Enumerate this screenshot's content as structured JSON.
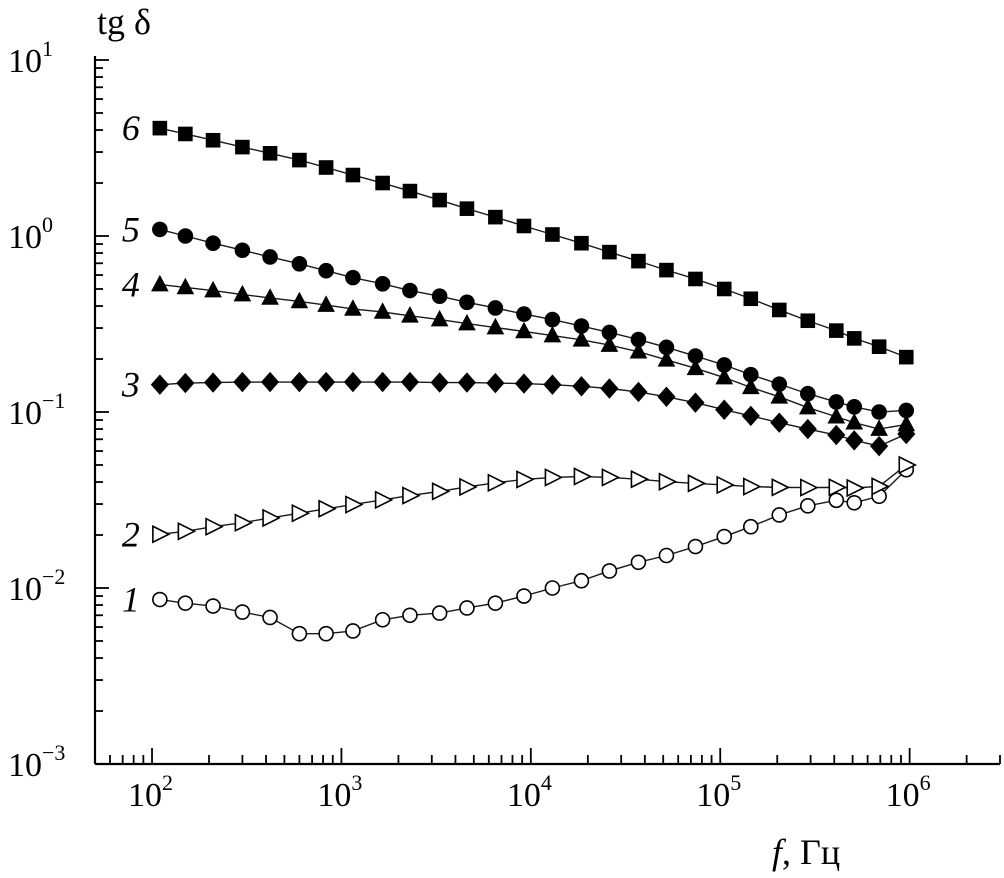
{
  "chart_data": {
    "type": "scatter",
    "title": "",
    "xlabel": {
      "var": "f",
      "unit": ", Гц"
    },
    "ylabel": "tg δ",
    "xscale": "log",
    "yscale": "log",
    "xlim": [
      50,
      3000000
    ],
    "ylim": [
      0.001,
      10
    ],
    "grid": false,
    "legend": "none",
    "x_ticks": [
      {
        "base": "10",
        "exp": "2",
        "value": 100
      },
      {
        "base": "10",
        "exp": "3",
        "value": 1000
      },
      {
        "base": "10",
        "exp": "4",
        "value": 10000
      },
      {
        "base": "10",
        "exp": "5",
        "value": 100000
      },
      {
        "base": "10",
        "exp": "6",
        "value": 1000000
      }
    ],
    "y_ticks": [
      {
        "base": "10",
        "exp": "−3",
        "value": 0.001
      },
      {
        "base": "10",
        "exp": "−2",
        "value": 0.01
      },
      {
        "base": "10",
        "exp": "−1",
        "value": 0.1
      },
      {
        "base": "10",
        "exp": "0",
        "value": 1
      },
      {
        "base": "10",
        "exp": "1",
        "value": 10
      }
    ],
    "series": [
      {
        "label": "1",
        "marker": "circle",
        "filled": false,
        "points": [
          [
            110,
            0.0086
          ],
          [
            150,
            0.0082
          ],
          [
            210,
            0.0079
          ],
          [
            300,
            0.0073
          ],
          [
            420,
            0.0068
          ],
          [
            600,
            0.0055
          ],
          [
            830,
            0.0055
          ],
          [
            1150,
            0.0057
          ],
          [
            1650,
            0.0066
          ],
          [
            2300,
            0.007
          ],
          [
            3300,
            0.0072
          ],
          [
            4600,
            0.0077
          ],
          [
            6500,
            0.0082
          ],
          [
            9200,
            0.009
          ],
          [
            13000,
            0.01
          ],
          [
            18500,
            0.011
          ],
          [
            26000,
            0.0125
          ],
          [
            37000,
            0.014
          ],
          [
            52000,
            0.0153
          ],
          [
            74000,
            0.0172
          ],
          [
            105000,
            0.0196
          ],
          [
            145000,
            0.0223
          ],
          [
            205000,
            0.026
          ],
          [
            290000,
            0.0293
          ],
          [
            410000,
            0.0315
          ],
          [
            510000,
            0.0305
          ],
          [
            690000,
            0.0332
          ],
          [
            960000,
            0.047
          ]
        ]
      },
      {
        "label": "2",
        "marker": "triangle-right",
        "filled": false,
        "points": [
          [
            110,
            0.0202
          ],
          [
            150,
            0.021
          ],
          [
            210,
            0.0223
          ],
          [
            300,
            0.0235
          ],
          [
            420,
            0.025
          ],
          [
            600,
            0.0266
          ],
          [
            830,
            0.0282
          ],
          [
            1150,
            0.0298
          ],
          [
            1650,
            0.0317
          ],
          [
            2300,
            0.0335
          ],
          [
            3300,
            0.0354
          ],
          [
            4600,
            0.0375
          ],
          [
            6500,
            0.0396
          ],
          [
            9200,
            0.0414
          ],
          [
            13000,
            0.0425
          ],
          [
            18500,
            0.043
          ],
          [
            26000,
            0.0425
          ],
          [
            37000,
            0.0415
          ],
          [
            52000,
            0.0402
          ],
          [
            74000,
            0.0393
          ],
          [
            105000,
            0.0385
          ],
          [
            145000,
            0.0377
          ],
          [
            205000,
            0.0373
          ],
          [
            290000,
            0.0372
          ],
          [
            410000,
            0.0373
          ],
          [
            510000,
            0.037
          ],
          [
            690000,
            0.0378
          ],
          [
            960000,
            0.05
          ]
        ]
      },
      {
        "label": "3",
        "marker": "diamond",
        "filled": true,
        "points": [
          [
            110,
            0.143
          ],
          [
            150,
            0.146
          ],
          [
            210,
            0.147
          ],
          [
            300,
            0.148
          ],
          [
            420,
            0.148
          ],
          [
            600,
            0.148
          ],
          [
            830,
            0.148
          ],
          [
            1150,
            0.148
          ],
          [
            1650,
            0.148
          ],
          [
            2300,
            0.148
          ],
          [
            3300,
            0.147
          ],
          [
            4600,
            0.147
          ],
          [
            6500,
            0.146
          ],
          [
            9200,
            0.145
          ],
          [
            13000,
            0.143
          ],
          [
            18500,
            0.14
          ],
          [
            26000,
            0.136
          ],
          [
            37000,
            0.13
          ],
          [
            52000,
            0.122
          ],
          [
            74000,
            0.113
          ],
          [
            105000,
            0.103
          ],
          [
            145000,
            0.095
          ],
          [
            205000,
            0.087
          ],
          [
            290000,
            0.08
          ],
          [
            410000,
            0.074
          ],
          [
            510000,
            0.069
          ],
          [
            690000,
            0.064
          ],
          [
            960000,
            0.075
          ]
        ]
      },
      {
        "label": "4",
        "marker": "triangle-up",
        "filled": true,
        "points": [
          [
            110,
            0.53
          ],
          [
            150,
            0.51
          ],
          [
            210,
            0.49
          ],
          [
            300,
            0.465
          ],
          [
            420,
            0.445
          ],
          [
            600,
            0.425
          ],
          [
            830,
            0.405
          ],
          [
            1150,
            0.385
          ],
          [
            1650,
            0.37
          ],
          [
            2300,
            0.352
          ],
          [
            3300,
            0.335
          ],
          [
            4600,
            0.318
          ],
          [
            6500,
            0.302
          ],
          [
            9200,
            0.287
          ],
          [
            13000,
            0.272
          ],
          [
            18500,
            0.257
          ],
          [
            26000,
            0.24
          ],
          [
            37000,
            0.22
          ],
          [
            52000,
            0.198
          ],
          [
            74000,
            0.177
          ],
          [
            105000,
            0.157
          ],
          [
            145000,
            0.138
          ],
          [
            205000,
            0.122
          ],
          [
            290000,
            0.106
          ],
          [
            410000,
            0.094
          ],
          [
            510000,
            0.087
          ],
          [
            690000,
            0.08
          ],
          [
            960000,
            0.085
          ]
        ]
      },
      {
        "label": "5",
        "marker": "circle",
        "filled": true,
        "points": [
          [
            110,
            1.09
          ],
          [
            150,
            1.0
          ],
          [
            210,
            0.91
          ],
          [
            300,
            0.83
          ],
          [
            420,
            0.76
          ],
          [
            600,
            0.695
          ],
          [
            830,
            0.635
          ],
          [
            1150,
            0.58
          ],
          [
            1650,
            0.535
          ],
          [
            2300,
            0.49
          ],
          [
            3300,
            0.455
          ],
          [
            4600,
            0.42
          ],
          [
            6500,
            0.39
          ],
          [
            9200,
            0.36
          ],
          [
            13000,
            0.335
          ],
          [
            18500,
            0.308
          ],
          [
            26000,
            0.283
          ],
          [
            37000,
            0.258
          ],
          [
            52000,
            0.233
          ],
          [
            74000,
            0.208
          ],
          [
            105000,
            0.185
          ],
          [
            145000,
            0.163
          ],
          [
            205000,
            0.144
          ],
          [
            290000,
            0.127
          ],
          [
            410000,
            0.114
          ],
          [
            510000,
            0.107
          ],
          [
            690000,
            0.1
          ],
          [
            960000,
            0.102
          ]
        ]
      },
      {
        "label": "6",
        "marker": "square",
        "filled": true,
        "points": [
          [
            110,
            4.1
          ],
          [
            150,
            3.8
          ],
          [
            210,
            3.5
          ],
          [
            300,
            3.2
          ],
          [
            420,
            2.95
          ],
          [
            600,
            2.7
          ],
          [
            830,
            2.45
          ],
          [
            1150,
            2.22
          ],
          [
            1650,
            2.0
          ],
          [
            2300,
            1.8
          ],
          [
            3300,
            1.6
          ],
          [
            4600,
            1.43
          ],
          [
            6500,
            1.28
          ],
          [
            9200,
            1.14
          ],
          [
            13000,
            1.02
          ],
          [
            18500,
            0.91
          ],
          [
            26000,
            0.81
          ],
          [
            37000,
            0.72
          ],
          [
            52000,
            0.64
          ],
          [
            74000,
            0.57
          ],
          [
            105000,
            0.5
          ],
          [
            145000,
            0.44
          ],
          [
            205000,
            0.38
          ],
          [
            290000,
            0.33
          ],
          [
            410000,
            0.29
          ],
          [
            510000,
            0.262
          ],
          [
            690000,
            0.235
          ],
          [
            960000,
            0.205
          ]
        ]
      }
    ]
  }
}
